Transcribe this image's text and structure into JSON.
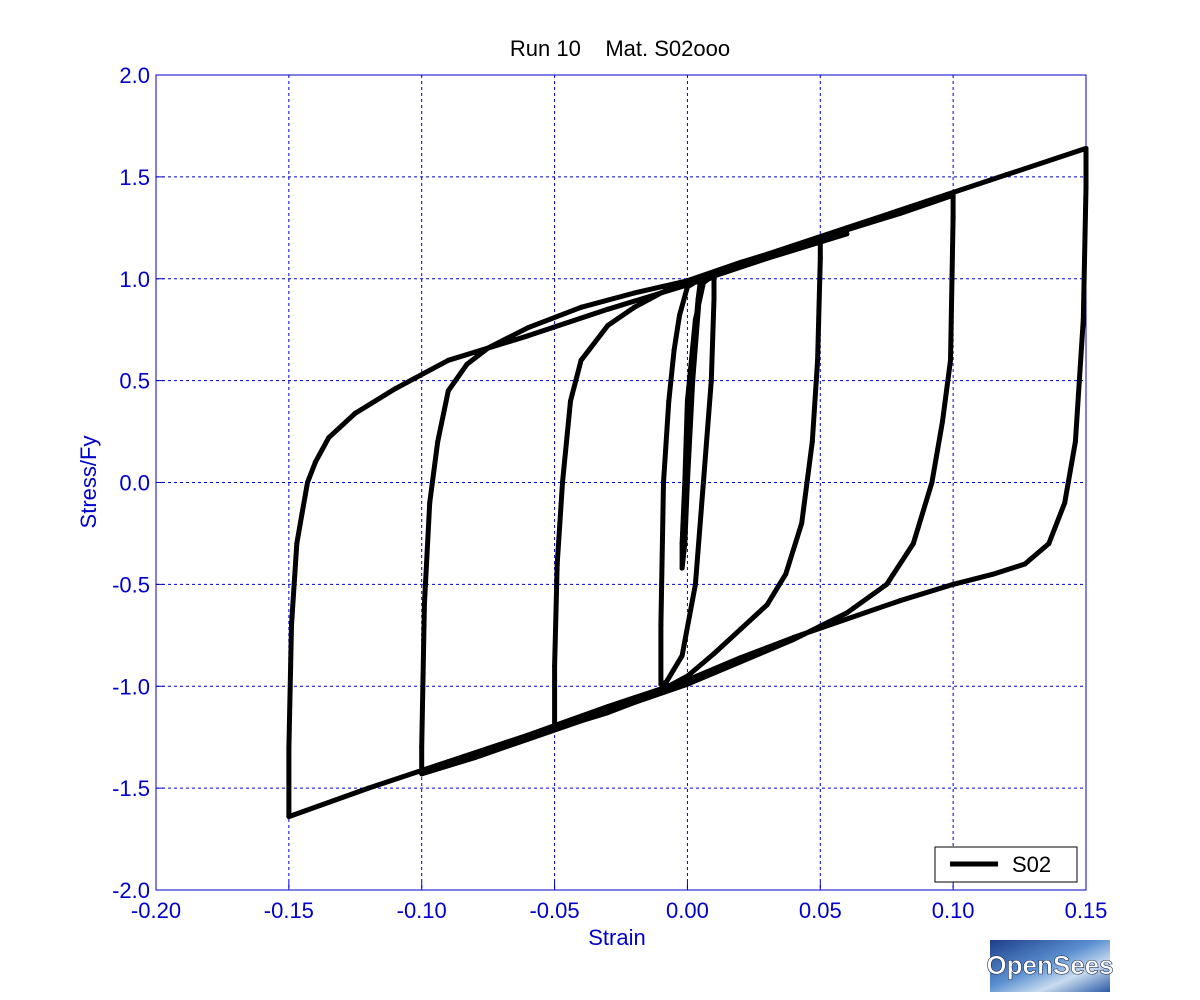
{
  "chart_data": {
    "type": "line",
    "title": "Run 10    Mat. S02ooo",
    "xlabel": "Strain",
    "ylabel": "Stress/Fy",
    "xlim": [
      -0.2,
      0.15
    ],
    "ylim": [
      -2.0,
      2.0
    ],
    "xticks": [
      -0.2,
      -0.15,
      -0.1,
      -0.05,
      0.0,
      0.05,
      0.1,
      0.15
    ],
    "yticks": [
      -2.0,
      -1.5,
      -1.0,
      -0.5,
      0.0,
      0.5,
      1.0,
      1.5,
      2.0
    ],
    "xtick_labels": [
      "-0.20",
      "-0.15",
      "-0.10",
      "-0.05",
      "0.00",
      "0.05",
      "0.10",
      "0.15"
    ],
    "ytick_labels": [
      "-2.0",
      "-1.5",
      "-1.0",
      "-0.5",
      "0.0",
      "0.5",
      "1.0",
      "1.5",
      "2.0"
    ],
    "grid": true,
    "legend_position": "bottom-right",
    "series": [
      {
        "name": "S02",
        "color": "#000000",
        "x": [
          0.0,
          0.002,
          0.004,
          0.005,
          0.002,
          0.0,
          -0.001,
          -0.002,
          -0.002,
          -0.001,
          0.0,
          0.003,
          0.006,
          0.008,
          0.01,
          0.01,
          0.009,
          0.006,
          0.003,
          -0.002,
          -0.008,
          -0.01,
          -0.01,
          -0.009,
          -0.007,
          -0.005,
          -0.003,
          0.0,
          0.005,
          0.01,
          0.02,
          0.03,
          0.04,
          0.05,
          0.05,
          0.049,
          0.047,
          0.043,
          0.037,
          0.03,
          0.02,
          0.01,
          0.0,
          -0.01,
          -0.02,
          -0.03,
          -0.04,
          -0.05,
          -0.05,
          -0.049,
          -0.047,
          -0.044,
          -0.04,
          -0.03,
          -0.02,
          -0.01,
          0.0,
          0.02,
          0.04,
          0.06,
          0.08,
          0.1,
          0.1,
          0.099,
          0.096,
          0.092,
          0.085,
          0.075,
          0.06,
          0.04,
          0.02,
          0.0,
          -0.02,
          -0.04,
          -0.06,
          -0.08,
          -0.1,
          -0.1,
          -0.099,
          -0.097,
          -0.094,
          -0.09,
          -0.083,
          -0.075,
          -0.06,
          -0.04,
          -0.02,
          0.0,
          0.03,
          0.06,
          0.09,
          0.12,
          0.15,
          0.15,
          0.149,
          0.146,
          0.142,
          0.136,
          0.127,
          0.115,
          0.1,
          0.08,
          0.06,
          0.04,
          0.02,
          0.0,
          -0.03,
          -0.06,
          -0.09,
          -0.12,
          -0.15,
          -0.15,
          -0.149,
          -0.147,
          -0.145,
          -0.143,
          -0.14,
          -0.135,
          -0.125,
          -0.11,
          -0.09,
          -0.06,
          -0.03,
          0.0,
          0.03,
          0.06
        ],
        "y": [
          0.0,
          0.6,
          0.9,
          1.0,
          0.5,
          0.0,
          -0.3,
          -0.42,
          -0.3,
          0.0,
          0.4,
          0.8,
          0.98,
          1.0,
          1.01,
          0.9,
          0.5,
          0.0,
          -0.5,
          -0.85,
          -0.98,
          -0.99,
          -0.7,
          0.0,
          0.4,
          0.65,
          0.82,
          0.96,
          1.0,
          1.03,
          1.06,
          1.1,
          1.15,
          1.19,
          1.1,
          0.6,
          0.2,
          -0.2,
          -0.45,
          -0.6,
          -0.72,
          -0.84,
          -0.95,
          -1.02,
          -1.08,
          -1.13,
          -1.17,
          -1.21,
          -0.9,
          -0.4,
          0.0,
          0.4,
          0.6,
          0.77,
          0.86,
          0.93,
          0.99,
          1.08,
          1.16,
          1.24,
          1.32,
          1.41,
          1.3,
          0.6,
          0.3,
          0.0,
          -0.3,
          -0.5,
          -0.64,
          -0.77,
          -0.88,
          -0.99,
          -1.08,
          -1.17,
          -1.26,
          -1.35,
          -1.43,
          -1.3,
          -0.6,
          -0.1,
          0.2,
          0.45,
          0.58,
          0.66,
          0.76,
          0.86,
          0.93,
          0.99,
          1.12,
          1.25,
          1.38,
          1.51,
          1.64,
          1.45,
          0.8,
          0.2,
          -0.1,
          -0.3,
          -0.4,
          -0.45,
          -0.5,
          -0.58,
          -0.67,
          -0.76,
          -0.86,
          -0.97,
          -1.1,
          -1.24,
          -1.37,
          -1.5,
          -1.64,
          -1.3,
          -0.7,
          -0.3,
          -0.15,
          0.0,
          0.1,
          0.22,
          0.34,
          0.46,
          0.6,
          0.72,
          0.85,
          0.97,
          1.1,
          1.22
        ]
      }
    ]
  },
  "logo": {
    "text": "OpenSees"
  }
}
